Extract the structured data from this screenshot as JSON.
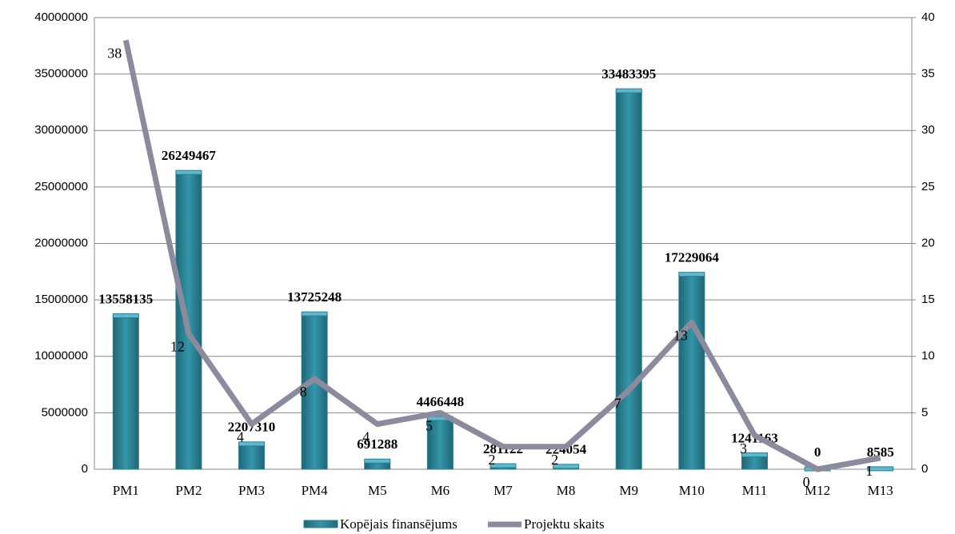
{
  "chart_data": {
    "type": "combo",
    "categories": [
      "PM1",
      "PM2",
      "PM3",
      "PM4",
      "M5",
      "M6",
      "M7",
      "M8",
      "M9",
      "M10",
      "M11",
      "M12",
      "M13"
    ],
    "series": [
      {
        "name": "Kopējais finansējums",
        "type": "bar",
        "color": "#2a7f92",
        "values": [
          13558135,
          26249467,
          2207310,
          13725248,
          691288,
          4466448,
          281122,
          224054,
          33483395,
          17229064,
          1241163,
          0,
          8585
        ]
      },
      {
        "name": "Projektu skaits",
        "type": "line",
        "axis": "y2",
        "color": "#8b8b9e",
        "values": [
          38,
          12,
          4,
          8,
          4,
          5,
          2,
          2,
          7,
          13,
          3,
          0,
          1
        ]
      }
    ],
    "ylim": [
      0,
      40000000
    ],
    "yticks": [
      0,
      5000000,
      10000000,
      15000000,
      20000000,
      25000000,
      30000000,
      35000000,
      40000000
    ],
    "y2lim": [
      0,
      40
    ],
    "y2ticks": [
      0,
      5,
      10,
      15,
      20,
      25,
      30,
      35,
      40
    ],
    "grid": true
  }
}
